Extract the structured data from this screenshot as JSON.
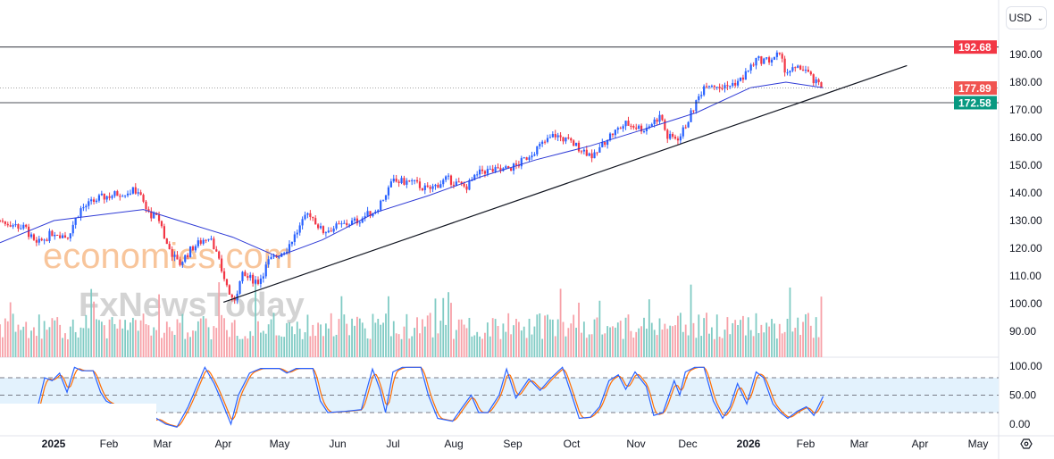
{
  "currency_selector": {
    "value": "USD",
    "icon": "chevron-down-icon"
  },
  "watermark": {
    "line1": "economies.com",
    "line2": "FxNewsToday"
  },
  "settings_icon": "gear-icon",
  "colors": {
    "up": "#2962ff",
    "down": "#f23645",
    "ma": "#2f3bd6",
    "stoch_k": "#2962ff",
    "stoch_d": "#ff6d00",
    "band": "#e3f2fd",
    "vol_up": "#80cbc4",
    "vol_down": "#f7a1a8"
  },
  "chart_data": {
    "type": "candlestick",
    "price_axis": {
      "ticks": [
        "90.00",
        "100.00",
        "110.00",
        "120.00",
        "130.00",
        "140.00",
        "150.00",
        "160.00",
        "170.00",
        "180.00",
        "190.00"
      ],
      "range": [
        86,
        196
      ]
    },
    "time_axis": [
      "2025",
      "Feb",
      "Mar",
      "Apr",
      "May",
      "Jun",
      "Jul",
      "Aug",
      "Sep",
      "Oct",
      "Nov",
      "Dec",
      "2026",
      "Feb",
      "Mar",
      "Apr",
      "May"
    ],
    "price_labels": [
      {
        "value": 192.68,
        "text": "192.68",
        "color": "#f23645",
        "style": "resistance"
      },
      {
        "value": 177.89,
        "text": "177.89",
        "color": "#f05350",
        "style": "last"
      },
      {
        "value": 172.58,
        "text": "172.58",
        "color": "#089981",
        "style": "support"
      }
    ],
    "trendline": {
      "from": {
        "day": 120,
        "price": 100.5
      },
      "to": {
        "day": 487,
        "price": 186
      }
    },
    "close_path": [
      [
        0,
        130
      ],
      [
        14,
        127
      ],
      [
        19,
        121
      ],
      [
        29,
        126
      ],
      [
        36,
        124
      ],
      [
        43,
        134
      ],
      [
        53,
        138
      ],
      [
        65,
        140
      ],
      [
        74,
        141
      ],
      [
        79,
        133
      ],
      [
        86,
        130
      ],
      [
        89,
        122
      ],
      [
        96,
        114
      ],
      [
        103,
        120
      ],
      [
        113,
        125
      ],
      [
        118,
        114
      ],
      [
        125,
        100
      ],
      [
        130,
        110
      ],
      [
        139,
        108
      ],
      [
        144,
        115
      ],
      [
        154,
        120
      ],
      [
        166,
        133
      ],
      [
        173,
        126
      ],
      [
        182,
        128
      ],
      [
        192,
        130
      ],
      [
        202,
        134
      ],
      [
        211,
        144
      ],
      [
        221,
        144
      ],
      [
        230,
        141
      ],
      [
        240,
        145
      ],
      [
        250,
        142
      ],
      [
        259,
        148
      ],
      [
        269,
        148
      ],
      [
        278,
        150
      ],
      [
        288,
        156
      ],
      [
        298,
        161
      ],
      [
        307,
        158
      ],
      [
        319,
        153
      ],
      [
        326,
        160
      ],
      [
        336,
        165
      ],
      [
        346,
        163
      ],
      [
        355,
        168
      ],
      [
        358,
        160
      ],
      [
        365,
        160
      ],
      [
        372,
        170
      ],
      [
        379,
        180
      ],
      [
        389,
        178
      ],
      [
        398,
        181
      ],
      [
        406,
        188
      ],
      [
        413,
        188
      ],
      [
        418,
        190
      ],
      [
        422,
        184
      ],
      [
        432,
        185
      ],
      [
        437,
        180
      ],
      [
        442,
        178
      ]
    ],
    "ma_path": [
      [
        0,
        122
      ],
      [
        29,
        130
      ],
      [
        77,
        134
      ],
      [
        96,
        130
      ],
      [
        125,
        124
      ],
      [
        149,
        117
      ],
      [
        173,
        123
      ],
      [
        202,
        133
      ],
      [
        230,
        139
      ],
      [
        259,
        146
      ],
      [
        288,
        152
      ],
      [
        317,
        157
      ],
      [
        346,
        163
      ],
      [
        374,
        169
      ],
      [
        403,
        178
      ],
      [
        422,
        180
      ],
      [
        442,
        178
      ]
    ],
    "stochastic": {
      "ticks": [
        "0.00",
        "50.00",
        "100.00"
      ],
      "levels": [
        20,
        50,
        80
      ],
      "k_path": [
        [
          0,
          0
        ],
        [
          18,
          0
        ],
        [
          21,
          40
        ],
        [
          24,
          80
        ],
        [
          28,
          75
        ],
        [
          32,
          88
        ],
        [
          36,
          55
        ],
        [
          40,
          98
        ],
        [
          44,
          92
        ],
        [
          50,
          92
        ],
        [
          54,
          55
        ],
        [
          57,
          40
        ],
        [
          63,
          30
        ],
        [
          66,
          0
        ],
        [
          80,
          0
        ],
        [
          84,
          10
        ],
        [
          89,
          0
        ],
        [
          95,
          -5
        ],
        [
          101,
          30
        ],
        [
          110,
          98
        ],
        [
          115,
          70
        ],
        [
          119,
          40
        ],
        [
          124,
          0
        ],
        [
          128,
          50
        ],
        [
          134,
          88
        ],
        [
          140,
          96
        ],
        [
          150,
          96
        ],
        [
          154,
          88
        ],
        [
          159,
          96
        ],
        [
          168,
          96
        ],
        [
          172,
          40
        ],
        [
          176,
          20
        ],
        [
          185,
          22
        ],
        [
          194,
          25
        ],
        [
          200,
          95
        ],
        [
          204,
          60
        ],
        [
          207,
          20
        ],
        [
          211,
          90
        ],
        [
          216,
          98
        ],
        [
          226,
          98
        ],
        [
          230,
          50
        ],
        [
          235,
          10
        ],
        [
          243,
          5
        ],
        [
          248,
          28
        ],
        [
          253,
          50
        ],
        [
          257,
          20
        ],
        [
          262,
          20
        ],
        [
          268,
          50
        ],
        [
          272,
          95
        ],
        [
          277,
          45
        ],
        [
          284,
          78
        ],
        [
          290,
          58
        ],
        [
          296,
          80
        ],
        [
          302,
          98
        ],
        [
          307,
          50
        ],
        [
          311,
          10
        ],
        [
          317,
          12
        ],
        [
          322,
          30
        ],
        [
          327,
          75
        ],
        [
          332,
          85
        ],
        [
          336,
          60
        ],
        [
          341,
          90
        ],
        [
          347,
          65
        ],
        [
          351,
          15
        ],
        [
          356,
          20
        ],
        [
          362,
          75
        ],
        [
          365,
          50
        ],
        [
          368,
          90
        ],
        [
          373,
          98
        ],
        [
          378,
          98
        ],
        [
          383,
          40
        ],
        [
          388,
          10
        ],
        [
          392,
          30
        ],
        [
          396,
          70
        ],
        [
          401,
          35
        ],
        [
          406,
          90
        ],
        [
          410,
          80
        ],
        [
          415,
          35
        ],
        [
          419,
          20
        ],
        [
          423,
          10
        ],
        [
          428,
          22
        ],
        [
          433,
          30
        ],
        [
          437,
          15
        ],
        [
          442,
          48
        ]
      ],
      "range": [
        0,
        100
      ]
    }
  }
}
